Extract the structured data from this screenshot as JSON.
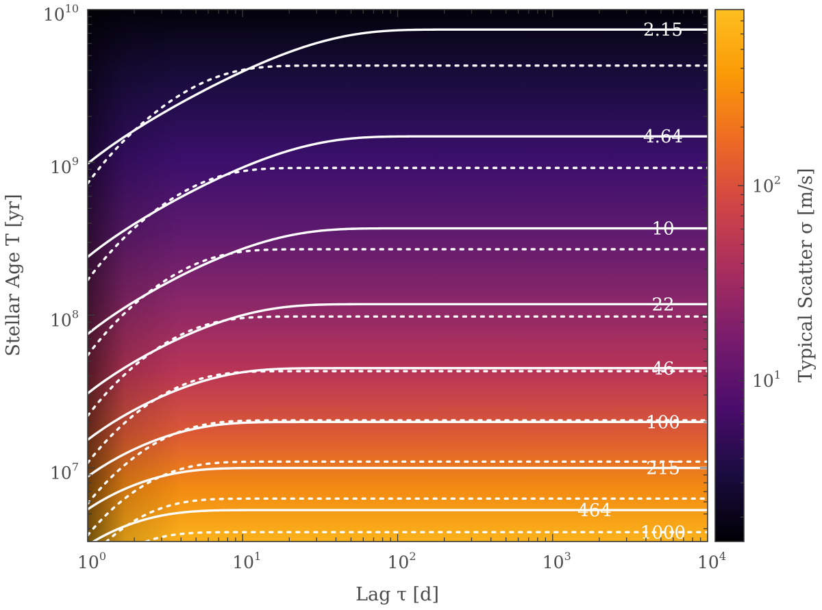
{
  "chart_data": {
    "type": "heatmap",
    "title": "",
    "xlabel": "Lag τ [d]",
    "ylabel": "Stellar Age T [yr]",
    "colorbar_label": "Typical Scatter σ [m/s]",
    "x_scale": "log",
    "y_scale": "log",
    "xlim": [
      1,
      10000
    ],
    "ylim": [
      3300000,
      10000000000
    ],
    "colorbar_range": [
      1.5,
      800
    ],
    "colorbar_scale": "log",
    "colormap": "inferno",
    "x_ticks": [
      {
        "base": "10",
        "exp": "0",
        "value": 1
      },
      {
        "base": "10",
        "exp": "1",
        "value": 10
      },
      {
        "base": "10",
        "exp": "2",
        "value": 100
      },
      {
        "base": "10",
        "exp": "3",
        "value": 1000
      },
      {
        "base": "10",
        "exp": "4",
        "value": 10000
      }
    ],
    "y_ticks": [
      {
        "base": "10",
        "exp": "7",
        "value": 10000000
      },
      {
        "base": "10",
        "exp": "8",
        "value": 100000000
      },
      {
        "base": "10",
        "exp": "9",
        "value": 1000000000
      },
      {
        "base": "10",
        "exp": "10",
        "value": 10000000000
      }
    ],
    "colorbar_ticks": [
      {
        "base": "10",
        "exp": "1",
        "value": 10
      },
      {
        "base": "10",
        "exp": "2",
        "value": 100
      }
    ],
    "contours": [
      {
        "label": "2.15",
        "level": 2.15,
        "solid_plateau_age": 7400000000,
        "dotted_plateau_age": 4300000000
      },
      {
        "label": "4.64",
        "level": 4.64,
        "solid_plateau_age": 1480000000,
        "dotted_plateau_age": 920000000
      },
      {
        "label": "10",
        "level": 10,
        "solid_plateau_age": 370000000,
        "dotted_plateau_age": 270000000
      },
      {
        "label": "22",
        "level": 22,
        "solid_plateau_age": 118000000,
        "dotted_plateau_age": 98000000
      },
      {
        "label": "46",
        "level": 46,
        "solid_plateau_age": 45000000,
        "dotted_plateau_age": 43000000
      },
      {
        "label": "100",
        "level": 100,
        "solid_plateau_age": 20000000,
        "dotted_plateau_age": 20500000
      },
      {
        "label": "215",
        "level": 215,
        "solid_plateau_age": 10000000,
        "dotted_plateau_age": 11000000
      },
      {
        "label": "464",
        "level": 464,
        "solid_plateau_age": 5300000,
        "dotted_plateau_age": 6300000
      },
      {
        "label": "1000",
        "level": 1000,
        "solid_plateau_age": 2500000,
        "dotted_plateau_age": 3800000
      }
    ]
  }
}
